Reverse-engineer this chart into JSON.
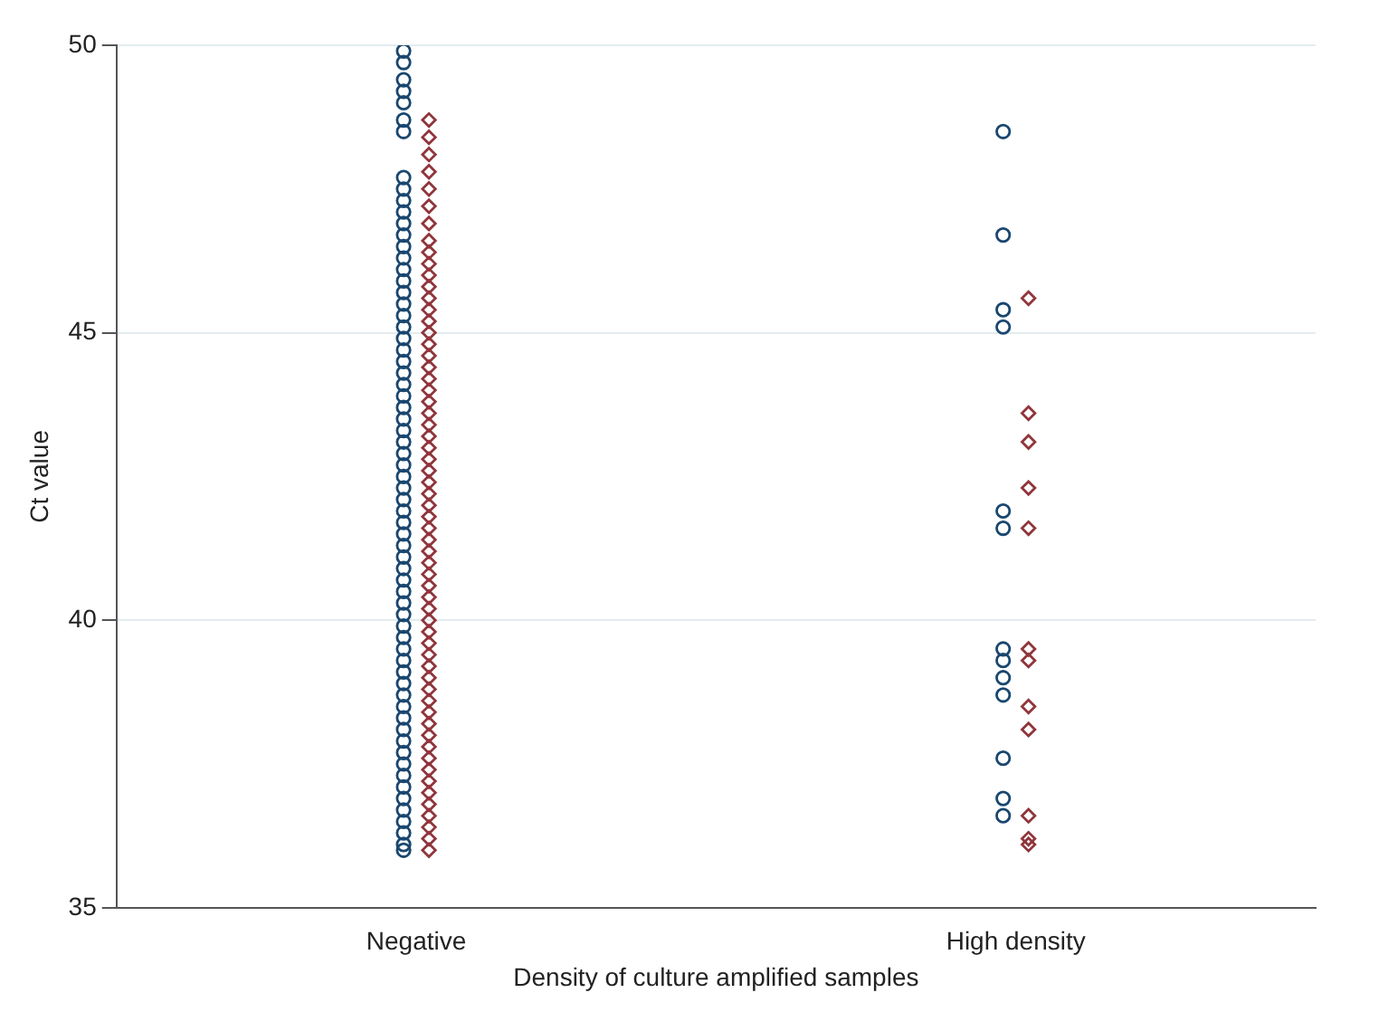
{
  "chart_data": {
    "type": "scatter",
    "xlabel": "Density of culture amplified samples",
    "ylabel": "Ct value",
    "categories": [
      "Negative",
      "High density"
    ],
    "ylim": [
      35,
      50
    ],
    "yticks": [
      35,
      40,
      45,
      50
    ],
    "grid": "y",
    "legend": false,
    "series": [
      {
        "color": "#1a476f",
        "marker": "circle",
        "x": [
          "Negative",
          "Negative",
          "Negative",
          "Negative",
          "Negative",
          "Negative",
          "Negative",
          "Negative",
          "Negative",
          "Negative",
          "Negative",
          "Negative",
          "Negative",
          "Negative",
          "Negative",
          "Negative",
          "Negative",
          "Negative",
          "Negative",
          "Negative",
          "Negative",
          "Negative",
          "Negative",
          "Negative",
          "Negative",
          "Negative",
          "Negative",
          "Negative",
          "Negative",
          "Negative",
          "Negative",
          "Negative",
          "Negative",
          "Negative",
          "Negative",
          "Negative",
          "Negative",
          "Negative",
          "Negative",
          "Negative",
          "Negative",
          "Negative",
          "Negative",
          "Negative",
          "Negative",
          "Negative",
          "Negative",
          "Negative",
          "Negative",
          "Negative",
          "Negative",
          "Negative",
          "Negative",
          "Negative",
          "Negative",
          "Negative",
          "Negative",
          "Negative",
          "Negative",
          "Negative",
          "Negative",
          "Negative",
          "Negative",
          "Negative",
          "Negative",
          "Negative",
          "Negative",
          "High density",
          "High density",
          "High density",
          "High density",
          "High density",
          "High density",
          "High density",
          "High density",
          "High density",
          "High density",
          "High density",
          "High density",
          "High density"
        ],
        "values": [
          49.9,
          49.7,
          49.4,
          49.2,
          49.0,
          48.7,
          48.5,
          47.7,
          47.5,
          47.3,
          47.1,
          46.9,
          46.7,
          46.5,
          46.3,
          46.1,
          45.9,
          45.7,
          45.5,
          45.3,
          45.1,
          44.9,
          44.7,
          44.5,
          44.3,
          44.1,
          43.9,
          43.7,
          43.5,
          43.3,
          43.1,
          42.9,
          42.7,
          42.5,
          42.3,
          42.1,
          41.9,
          41.7,
          41.5,
          41.3,
          41.1,
          40.9,
          40.7,
          40.5,
          40.3,
          40.1,
          39.9,
          39.7,
          39.5,
          39.3,
          39.1,
          38.9,
          38.7,
          38.5,
          38.3,
          38.1,
          37.9,
          37.7,
          37.5,
          37.3,
          37.1,
          36.9,
          36.7,
          36.5,
          36.3,
          36.1,
          36.0,
          48.5,
          46.7,
          45.4,
          45.1,
          41.9,
          41.6,
          39.5,
          39.3,
          39.0,
          38.7,
          37.6,
          36.9,
          36.6
        ]
      },
      {
        "color": "#90353b",
        "marker": "diamond",
        "x": [
          "Negative",
          "Negative",
          "Negative",
          "Negative",
          "Negative",
          "Negative",
          "Negative",
          "Negative",
          "Negative",
          "Negative",
          "Negative",
          "Negative",
          "Negative",
          "Negative",
          "Negative",
          "Negative",
          "Negative",
          "Negative",
          "Negative",
          "Negative",
          "Negative",
          "Negative",
          "Negative",
          "Negative",
          "Negative",
          "Negative",
          "Negative",
          "Negative",
          "Negative",
          "Negative",
          "Negative",
          "Negative",
          "Negative",
          "Negative",
          "Negative",
          "Negative",
          "Negative",
          "Negative",
          "Negative",
          "Negative",
          "Negative",
          "Negative",
          "Negative",
          "Negative",
          "Negative",
          "Negative",
          "Negative",
          "Negative",
          "Negative",
          "Negative",
          "Negative",
          "Negative",
          "Negative",
          "Negative",
          "Negative",
          "Negative",
          "Negative",
          "Negative",
          "Negative",
          "Negative",
          "Negative",
          "High density",
          "High density",
          "High density",
          "High density",
          "High density",
          "High density",
          "High density",
          "High density",
          "High density",
          "High density",
          "High density",
          "High density"
        ],
        "values": [
          48.7,
          48.4,
          48.1,
          47.8,
          47.5,
          47.2,
          46.9,
          46.6,
          46.4,
          46.2,
          46.0,
          45.8,
          45.6,
          45.4,
          45.2,
          45.0,
          44.8,
          44.6,
          44.4,
          44.2,
          44.0,
          43.8,
          43.6,
          43.4,
          43.2,
          43.0,
          42.8,
          42.6,
          42.4,
          42.2,
          42.0,
          41.8,
          41.6,
          41.4,
          41.2,
          41.0,
          40.8,
          40.6,
          40.4,
          40.2,
          40.0,
          39.8,
          39.6,
          39.4,
          39.2,
          39.0,
          38.8,
          38.6,
          38.4,
          38.2,
          38.0,
          37.8,
          37.6,
          37.4,
          37.2,
          37.0,
          36.8,
          36.6,
          36.4,
          36.2,
          36.0,
          45.6,
          43.6,
          43.1,
          42.3,
          41.6,
          39.5,
          39.3,
          38.5,
          38.1,
          36.6,
          36.2,
          36.1
        ]
      }
    ]
  }
}
